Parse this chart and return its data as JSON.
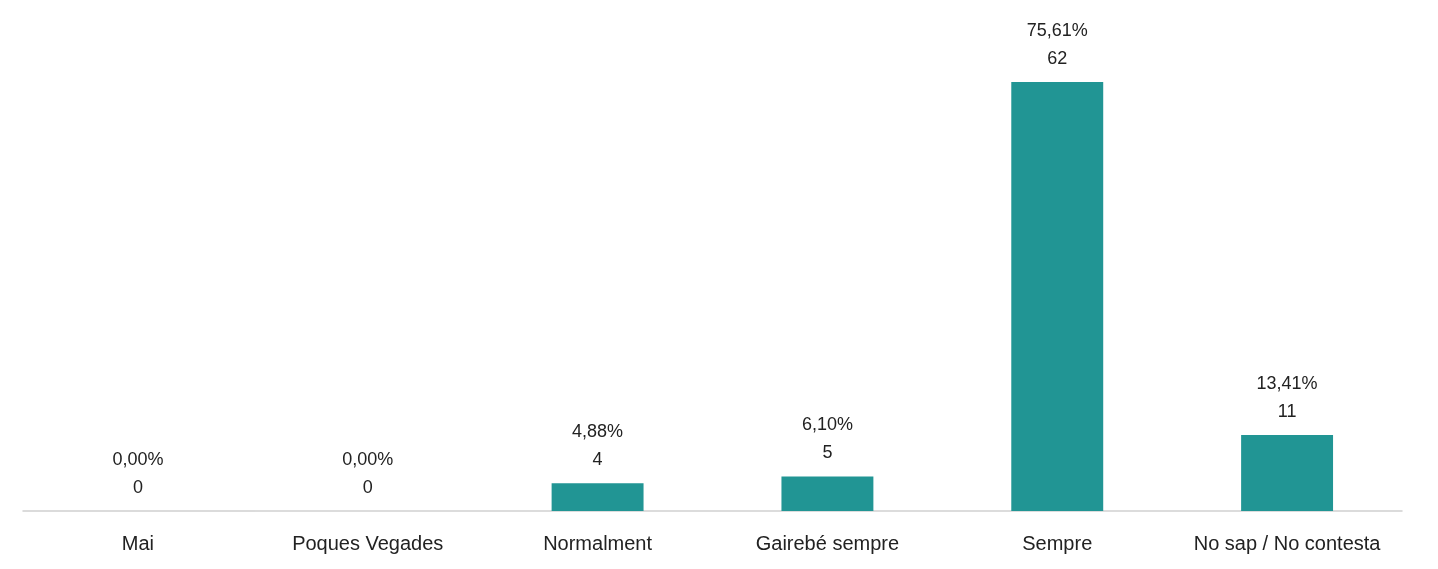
{
  "chart_data": {
    "type": "bar",
    "categories": [
      "Mai",
      "Poques Vegades",
      "Normalment",
      "Gairebé sempre",
      "Sempre",
      "No sap / No contesta"
    ],
    "values": [
      0,
      0,
      4,
      5,
      62,
      11
    ],
    "value_labels": [
      "0,00%\n0",
      "0,00%\n0",
      "4,88%\n4",
      "6,10%\n5",
      "75,61%\n62",
      "13,41%\n11"
    ],
    "color": "#219594",
    "grid": false
  }
}
